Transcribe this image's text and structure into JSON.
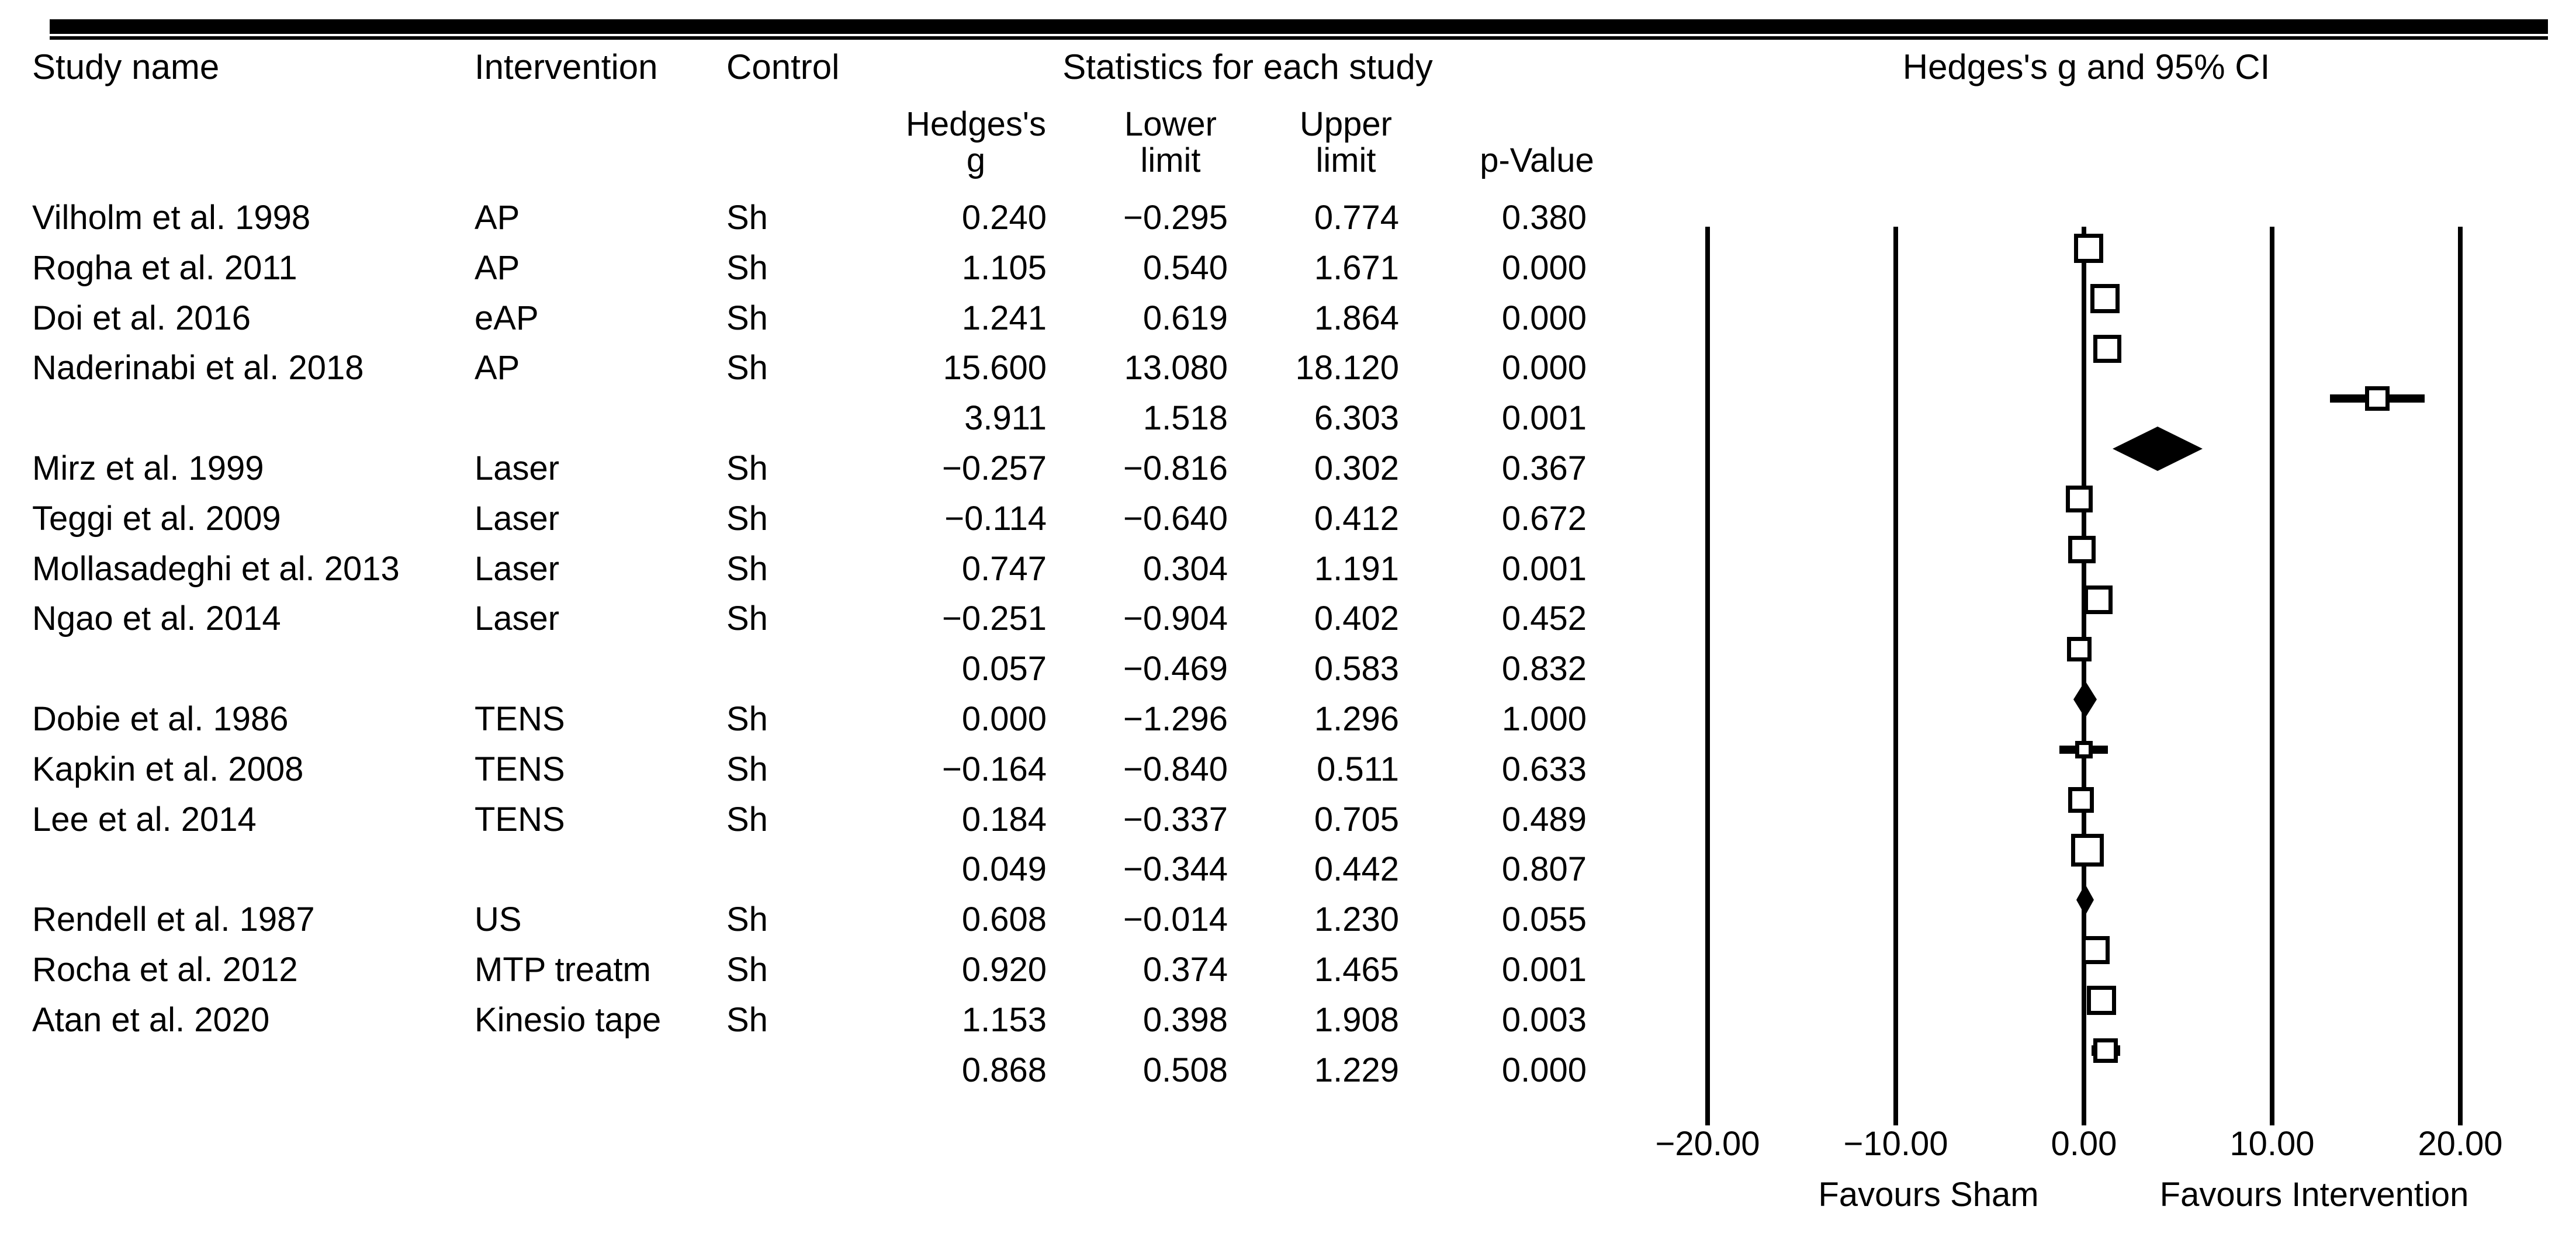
{
  "figure": {
    "header": {
      "study": "Study name",
      "intervention": "Intervention",
      "control": "Control",
      "stats_title": "Statistics for each study",
      "plot_title": "Hedges's g and 95% CI",
      "col_g_line1": "Hedges's",
      "col_g_line2": "g",
      "col_lower_line1": "Lower",
      "col_lower_line2": "limit",
      "col_upper_line1": "Upper",
      "col_upper_line2": "limit",
      "col_p": "p-Value"
    },
    "colors": {
      "ink": "#000000",
      "background": "#ffffff"
    }
  },
  "chart_data": {
    "type": "forest",
    "effect_measure": "Hedges's g",
    "xlabel": "",
    "xlim": [
      -20,
      20
    ],
    "x_ticks": [
      -20,
      -10,
      0,
      10,
      20
    ],
    "x_tick_labels": [
      "-20.00",
      "-10.00",
      "0.00",
      "10.00",
      "20.00"
    ],
    "favours_left": "Favours Sham",
    "favours_right": "Favours Intervention",
    "grid": "vertical-lines-at-ticks",
    "studies": [
      {
        "study": "Vilholm et al. 1998",
        "intervention": "AP",
        "control": "Sh",
        "g": "0.240",
        "lower": "-0.295",
        "upper": "0.774",
        "p": "0.380",
        "row_type": "study",
        "marker": {
          "type": "square",
          "size": 50
        }
      },
      {
        "study": "Rogha et al. 2011",
        "intervention": "AP",
        "control": "Sh",
        "g": "1.105",
        "lower": "0.540",
        "upper": "1.671",
        "p": "0.000",
        "row_type": "study",
        "marker": {
          "type": "square",
          "size": 50
        }
      },
      {
        "study": "Doi et al. 2016",
        "intervention": "eAP",
        "control": "Sh",
        "g": "1.241",
        "lower": "0.619",
        "upper": "1.864",
        "p": "0.000",
        "row_type": "study",
        "marker": {
          "type": "square",
          "size": 48
        }
      },
      {
        "study": "Naderinabi et al. 2018",
        "intervention": "AP",
        "control": "Sh",
        "g": "15.600",
        "lower": "13.080",
        "upper": "18.120",
        "p": "0.000",
        "row_type": "study",
        "marker": {
          "type": "square",
          "size": 42,
          "whisker": true,
          "whisker_thickness": 14
        }
      },
      {
        "study": "",
        "intervention": "",
        "control": "",
        "g": "3.911",
        "lower": "1.518",
        "upper": "6.303",
        "p": "0.001",
        "row_type": "summary",
        "marker": {
          "type": "diamond",
          "width": 154,
          "height": 76
        }
      },
      {
        "study": "Mirz et al. 1999",
        "intervention": "Laser",
        "control": "Sh",
        "g": "-0.257",
        "lower": "-0.816",
        "upper": "0.302",
        "p": "0.367",
        "row_type": "study",
        "marker": {
          "type": "square",
          "size": 46
        }
      },
      {
        "study": "Teggi et al. 2009",
        "intervention": "Laser",
        "control": "Sh",
        "g": "-0.114",
        "lower": "-0.640",
        "upper": "0.412",
        "p": "0.672",
        "row_type": "study",
        "marker": {
          "type": "square",
          "size": 47
        }
      },
      {
        "study": "Mollasadeghi et al. 2013",
        "intervention": "Laser",
        "control": "Sh",
        "g": "0.747",
        "lower": "0.304",
        "upper": "1.191",
        "p": "0.001",
        "row_type": "study",
        "marker": {
          "type": "square",
          "size": 49
        }
      },
      {
        "study": "Ngao et al. 2014",
        "intervention": "Laser",
        "control": "Sh",
        "g": "-0.251",
        "lower": "-0.904",
        "upper": "0.402",
        "p": "0.452",
        "row_type": "study",
        "marker": {
          "type": "square",
          "size": 42
        }
      },
      {
        "study": "",
        "intervention": "",
        "control": "",
        "g": "0.057",
        "lower": "-0.469",
        "upper": "0.583",
        "p": "0.832",
        "row_type": "summary",
        "marker": {
          "type": "diamond",
          "width": 40,
          "height": 64
        }
      },
      {
        "study": "Dobie et al. 1986",
        "intervention": "TENS",
        "control": "Sh",
        "g": "0.000",
        "lower": "-1.296",
        "upper": "1.296",
        "p": "1.000",
        "row_type": "study",
        "marker": {
          "type": "square",
          "size": 30,
          "whisker": true,
          "whisker_thickness": 14
        }
      },
      {
        "study": "Kapkin et al. 2008",
        "intervention": "TENS",
        "control": "Sh",
        "g": "-0.164",
        "lower": "-0.840",
        "upper": "0.511",
        "p": "0.633",
        "row_type": "study",
        "marker": {
          "type": "square",
          "size": 44
        }
      },
      {
        "study": "Lee et al. 2014",
        "intervention": "TENS",
        "control": "Sh",
        "g": "0.184",
        "lower": "-0.337",
        "upper": "0.705",
        "p": "0.489",
        "row_type": "study",
        "marker": {
          "type": "square",
          "size": 56
        }
      },
      {
        "study": "",
        "intervention": "",
        "control": "",
        "g": "0.049",
        "lower": "-0.344",
        "upper": "0.442",
        "p": "0.807",
        "row_type": "summary",
        "marker": {
          "type": "diamond",
          "width": 30,
          "height": 54
        }
      },
      {
        "study": "Rendell et al. 1987",
        "intervention": "US",
        "control": "Sh",
        "g": "0.608",
        "lower": "-0.014",
        "upper": "1.230",
        "p": "0.055",
        "row_type": "study",
        "marker": {
          "type": "square",
          "size": 48
        }
      },
      {
        "study": "Rocha et al. 2012",
        "intervention": "MTP treatm",
        "control": "Sh",
        "g": "0.920",
        "lower": "0.374",
        "upper": "1.465",
        "p": "0.001",
        "row_type": "study",
        "marker": {
          "type": "square",
          "size": 50
        }
      },
      {
        "study": "Atan et al. 2020",
        "intervention": "Kinesio tape",
        "control": "Sh",
        "g": "1.153",
        "lower": "0.398",
        "upper": "1.908",
        "p": "0.003",
        "row_type": "study",
        "marker": {
          "type": "square",
          "size": 42,
          "whisker": true,
          "whisker_thickness": 18
        }
      },
      {
        "study": "",
        "intervention": "",
        "control": "",
        "g": "0.868",
        "lower": "0.508",
        "upper": "1.229",
        "p": "0.000",
        "row_type": "summary",
        "marker": {
          "type": "none"
        }
      }
    ]
  }
}
